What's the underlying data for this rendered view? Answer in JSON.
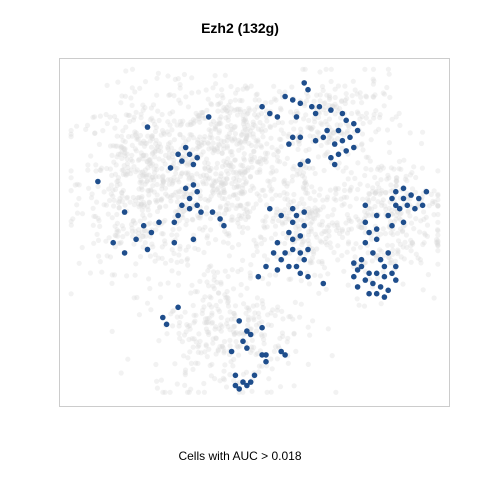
{
  "chart_data": {
    "type": "scatter",
    "title": "Ezh2 (132g)",
    "caption": "Cells with AUC > 0.018",
    "xlabel": "",
    "ylabel": "",
    "xlim": [
      0,
      100
    ],
    "ylim": [
      0,
      100
    ],
    "axes_visible": false,
    "grid": false,
    "legend": "none",
    "colors": {
      "background_cells": "#d9d9d9",
      "highlighted_cells": "#1f4e8c",
      "frame": "#cccccc"
    },
    "series": [
      {
        "role": "background",
        "clusters": [
          {
            "cx": 22,
            "cy": 65,
            "sx": 9,
            "sy": 13,
            "n": 560
          },
          {
            "cx": 44,
            "cy": 65,
            "sx": 8,
            "sy": 12,
            "n": 380
          },
          {
            "cx": 46,
            "cy": 83,
            "sx": 9,
            "sy": 6,
            "n": 170
          },
          {
            "cx": 72,
            "cy": 82,
            "sx": 8,
            "sy": 8,
            "n": 200
          },
          {
            "cx": 64,
            "cy": 55,
            "sx": 5,
            "sy": 9,
            "n": 160
          },
          {
            "cx": 82,
            "cy": 50,
            "sx": 9,
            "sy": 9,
            "n": 240
          },
          {
            "cx": 43,
            "cy": 22,
            "sx": 10,
            "sy": 10,
            "n": 320
          },
          {
            "cx": 86,
            "cy": 61,
            "sx": 6,
            "sy": 5,
            "n": 80
          }
        ]
      },
      {
        "role": "highlighted",
        "points": [
          [
            63,
            94
          ],
          [
            64,
            92
          ],
          [
            58,
            90
          ],
          [
            60,
            89
          ],
          [
            62,
            88
          ],
          [
            65,
            87
          ],
          [
            67,
            87
          ],
          [
            66,
            85
          ],
          [
            70,
            86
          ],
          [
            73,
            85
          ],
          [
            74,
            83
          ],
          [
            72,
            80
          ],
          [
            69,
            80
          ],
          [
            68,
            78
          ],
          [
            66,
            77
          ],
          [
            62,
            78
          ],
          [
            60,
            78
          ],
          [
            59,
            76
          ],
          [
            71,
            76
          ],
          [
            73,
            77
          ],
          [
            75,
            78
          ],
          [
            76,
            75
          ],
          [
            74,
            74
          ],
          [
            72,
            73
          ],
          [
            70,
            72
          ],
          [
            71,
            70
          ],
          [
            56,
            84
          ],
          [
            61,
            84
          ],
          [
            76,
            82
          ],
          [
            77,
            80
          ],
          [
            52,
            87
          ],
          [
            54,
            85
          ],
          [
            32,
            75
          ],
          [
            33,
            73
          ],
          [
            31,
            71
          ],
          [
            30,
            73
          ],
          [
            34,
            70
          ],
          [
            35,
            72
          ],
          [
            28,
            69
          ],
          [
            22,
            81
          ],
          [
            38,
            84
          ],
          [
            62,
            70
          ],
          [
            64,
            71
          ],
          [
            34,
            64
          ],
          [
            35,
            62
          ],
          [
            32,
            63
          ],
          [
            33,
            60
          ],
          [
            31,
            58
          ],
          [
            33,
            57
          ],
          [
            30,
            55
          ],
          [
            35,
            58
          ],
          [
            36,
            56
          ],
          [
            41,
            54
          ],
          [
            42,
            52
          ],
          [
            39,
            56
          ],
          [
            9,
            65
          ],
          [
            16,
            56
          ],
          [
            21,
            52
          ],
          [
            23,
            50
          ],
          [
            19,
            48
          ],
          [
            13,
            47
          ],
          [
            16,
            44
          ],
          [
            22,
            45
          ],
          [
            25,
            53
          ],
          [
            29,
            53
          ],
          [
            34,
            48
          ],
          [
            29,
            47
          ],
          [
            54,
            57
          ],
          [
            57,
            55
          ],
          [
            59,
            50
          ],
          [
            60,
            48
          ],
          [
            60,
            45
          ],
          [
            58,
            44
          ],
          [
            56,
            47
          ],
          [
            55,
            44
          ],
          [
            57,
            42
          ],
          [
            59,
            40
          ],
          [
            61,
            40
          ],
          [
            63,
            42
          ],
          [
            62,
            44
          ],
          [
            64,
            45
          ],
          [
            62,
            49
          ],
          [
            60,
            53
          ],
          [
            63,
            52
          ],
          [
            62,
            38
          ],
          [
            64,
            37
          ],
          [
            53,
            40
          ],
          [
            56,
            39
          ],
          [
            51,
            37
          ],
          [
            60,
            57
          ],
          [
            61,
            55
          ],
          [
            63,
            56
          ],
          [
            68,
            35
          ],
          [
            80,
            50
          ],
          [
            82,
            48
          ],
          [
            79,
            47
          ],
          [
            81,
            44
          ],
          [
            83,
            42
          ],
          [
            85,
            44
          ],
          [
            84,
            40
          ],
          [
            82,
            38
          ],
          [
            80,
            38
          ],
          [
            78,
            40
          ],
          [
            76,
            41
          ],
          [
            77,
            39
          ],
          [
            79,
            36
          ],
          [
            81,
            35
          ],
          [
            83,
            34
          ],
          [
            84,
            37
          ],
          [
            86,
            38
          ],
          [
            87,
            36
          ],
          [
            85,
            33
          ],
          [
            82,
            32
          ],
          [
            80,
            32
          ],
          [
            84,
            31
          ],
          [
            87,
            40
          ],
          [
            77,
            34
          ],
          [
            76,
            37
          ],
          [
            78,
            42
          ],
          [
            79,
            53
          ],
          [
            82,
            55
          ],
          [
            79,
            58
          ],
          [
            87,
            62
          ],
          [
            89,
            63
          ],
          [
            91,
            61
          ],
          [
            93,
            60
          ],
          [
            90,
            58
          ],
          [
            92,
            57
          ],
          [
            94,
            58
          ],
          [
            95,
            62
          ],
          [
            89,
            60
          ],
          [
            88,
            57
          ],
          [
            86,
            60
          ],
          [
            87,
            58
          ],
          [
            86,
            52
          ],
          [
            85,
            55
          ],
          [
            82,
            51
          ],
          [
            89,
            53
          ],
          [
            26,
            25
          ],
          [
            27,
            23
          ],
          [
            30,
            28
          ],
          [
            46,
            24
          ],
          [
            47,
            18
          ],
          [
            48,
            16
          ],
          [
            49,
            20
          ],
          [
            48,
            21
          ],
          [
            52,
            22
          ],
          [
            52,
            14
          ],
          [
            44,
            15
          ],
          [
            45,
            8
          ],
          [
            47,
            6
          ],
          [
            46,
            4
          ],
          [
            48,
            5
          ],
          [
            49,
            6
          ],
          [
            45,
            5
          ],
          [
            50,
            8
          ],
          [
            53,
            12
          ],
          [
            53,
            14
          ],
          [
            57,
            15
          ],
          [
            58,
            14
          ]
        ]
      }
    ]
  }
}
